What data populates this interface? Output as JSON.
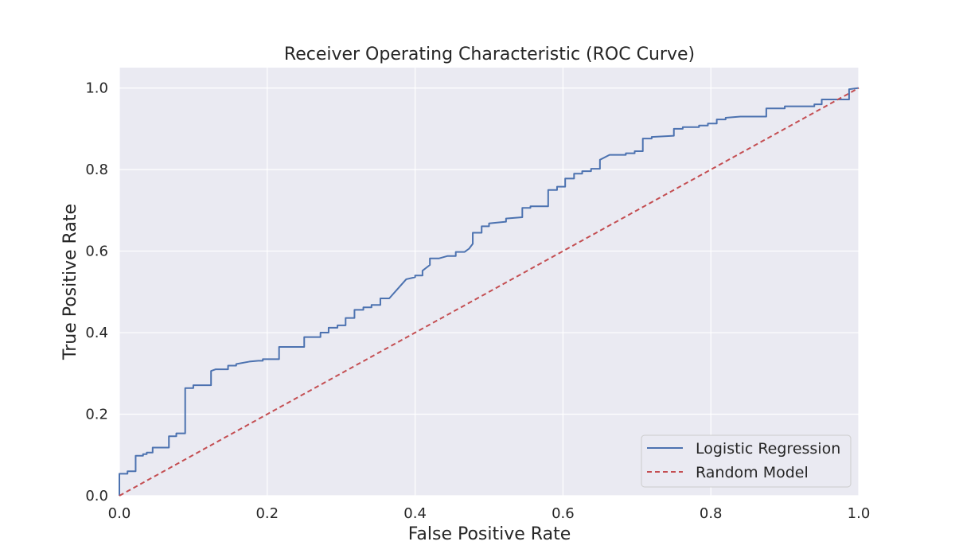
{
  "chart_data": {
    "type": "line",
    "title": "Receiver Operating Characteristic (ROC Curve)",
    "xlabel": "False Positive Rate",
    "ylabel": "True Positive Rate",
    "xlim": [
      0,
      1
    ],
    "ylim": [
      0,
      1.05
    ],
    "xticks": [
      "0.0",
      "0.2",
      "0.4",
      "0.6",
      "0.8",
      "1.0"
    ],
    "yticks": [
      "0.0",
      "0.2",
      "0.4",
      "0.6",
      "0.8",
      "1.0"
    ],
    "grid": true,
    "legend_position": "lower-right",
    "background_color": "#eaeaf2",
    "series": [
      {
        "name": "Logistic Regression",
        "color": "#4c72b0",
        "style": "solid",
        "points": [
          [
            0.0,
            0.0
          ],
          [
            0.0,
            0.054
          ],
          [
            0.011,
            0.054
          ],
          [
            0.011,
            0.06
          ],
          [
            0.022,
            0.06
          ],
          [
            0.022,
            0.098
          ],
          [
            0.032,
            0.098
          ],
          [
            0.032,
            0.102
          ],
          [
            0.037,
            0.102
          ],
          [
            0.037,
            0.106
          ],
          [
            0.045,
            0.106
          ],
          [
            0.045,
            0.118
          ],
          [
            0.067,
            0.118
          ],
          [
            0.067,
            0.146
          ],
          [
            0.077,
            0.146
          ],
          [
            0.077,
            0.153
          ],
          [
            0.089,
            0.153
          ],
          [
            0.089,
            0.264
          ],
          [
            0.1,
            0.264
          ],
          [
            0.1,
            0.271
          ],
          [
            0.124,
            0.271
          ],
          [
            0.124,
            0.306
          ],
          [
            0.13,
            0.31
          ],
          [
            0.147,
            0.31
          ],
          [
            0.147,
            0.319
          ],
          [
            0.158,
            0.319
          ],
          [
            0.158,
            0.323
          ],
          [
            0.176,
            0.329
          ],
          [
            0.188,
            0.331
          ],
          [
            0.194,
            0.331
          ],
          [
            0.194,
            0.335
          ],
          [
            0.216,
            0.335
          ],
          [
            0.216,
            0.365
          ],
          [
            0.25,
            0.365
          ],
          [
            0.25,
            0.389
          ],
          [
            0.272,
            0.389
          ],
          [
            0.272,
            0.4
          ],
          [
            0.283,
            0.4
          ],
          [
            0.283,
            0.412
          ],
          [
            0.295,
            0.412
          ],
          [
            0.295,
            0.418
          ],
          [
            0.306,
            0.418
          ],
          [
            0.306,
            0.436
          ],
          [
            0.318,
            0.436
          ],
          [
            0.318,
            0.456
          ],
          [
            0.33,
            0.456
          ],
          [
            0.33,
            0.462
          ],
          [
            0.341,
            0.462
          ],
          [
            0.341,
            0.468
          ],
          [
            0.353,
            0.468
          ],
          [
            0.353,
            0.484
          ],
          [
            0.365,
            0.484
          ],
          [
            0.388,
            0.531
          ],
          [
            0.4,
            0.536
          ],
          [
            0.4,
            0.54
          ],
          [
            0.41,
            0.54
          ],
          [
            0.41,
            0.552
          ],
          [
            0.42,
            0.566
          ],
          [
            0.42,
            0.582
          ],
          [
            0.432,
            0.582
          ],
          [
            0.444,
            0.588
          ],
          [
            0.455,
            0.588
          ],
          [
            0.455,
            0.598
          ],
          [
            0.467,
            0.598
          ],
          [
            0.473,
            0.606
          ],
          [
            0.478,
            0.618
          ],
          [
            0.478,
            0.645
          ],
          [
            0.49,
            0.645
          ],
          [
            0.49,
            0.661
          ],
          [
            0.5,
            0.661
          ],
          [
            0.5,
            0.668
          ],
          [
            0.523,
            0.672
          ],
          [
            0.523,
            0.68
          ],
          [
            0.545,
            0.683
          ],
          [
            0.545,
            0.706
          ],
          [
            0.556,
            0.706
          ],
          [
            0.556,
            0.71
          ],
          [
            0.58,
            0.71
          ],
          [
            0.58,
            0.75
          ],
          [
            0.592,
            0.75
          ],
          [
            0.592,
            0.758
          ],
          [
            0.603,
            0.758
          ],
          [
            0.603,
            0.778
          ],
          [
            0.615,
            0.778
          ],
          [
            0.615,
            0.79
          ],
          [
            0.626,
            0.79
          ],
          [
            0.626,
            0.796
          ],
          [
            0.638,
            0.796
          ],
          [
            0.638,
            0.802
          ],
          [
            0.65,
            0.802
          ],
          [
            0.65,
            0.824
          ],
          [
            0.663,
            0.836
          ],
          [
            0.685,
            0.836
          ],
          [
            0.685,
            0.84
          ],
          [
            0.697,
            0.84
          ],
          [
            0.697,
            0.845
          ],
          [
            0.708,
            0.845
          ],
          [
            0.708,
            0.876
          ],
          [
            0.72,
            0.876
          ],
          [
            0.72,
            0.88
          ],
          [
            0.75,
            0.883
          ],
          [
            0.75,
            0.9
          ],
          [
            0.762,
            0.9
          ],
          [
            0.762,
            0.904
          ],
          [
            0.784,
            0.904
          ],
          [
            0.784,
            0.908
          ],
          [
            0.796,
            0.908
          ],
          [
            0.796,
            0.913
          ],
          [
            0.808,
            0.913
          ],
          [
            0.808,
            0.923
          ],
          [
            0.82,
            0.923
          ],
          [
            0.82,
            0.927
          ],
          [
            0.84,
            0.93
          ],
          [
            0.875,
            0.93
          ],
          [
            0.875,
            0.95
          ],
          [
            0.9,
            0.95
          ],
          [
            0.9,
            0.955
          ],
          [
            0.94,
            0.955
          ],
          [
            0.94,
            0.96
          ],
          [
            0.95,
            0.96
          ],
          [
            0.95,
            0.972
          ],
          [
            0.987,
            0.972
          ],
          [
            0.987,
            0.997
          ],
          [
            1.0,
            1.0
          ]
        ]
      },
      {
        "name": "Random Model",
        "color": "#c44e52",
        "style": "dashed",
        "points": [
          [
            0,
            0
          ],
          [
            1,
            1
          ]
        ]
      }
    ]
  }
}
